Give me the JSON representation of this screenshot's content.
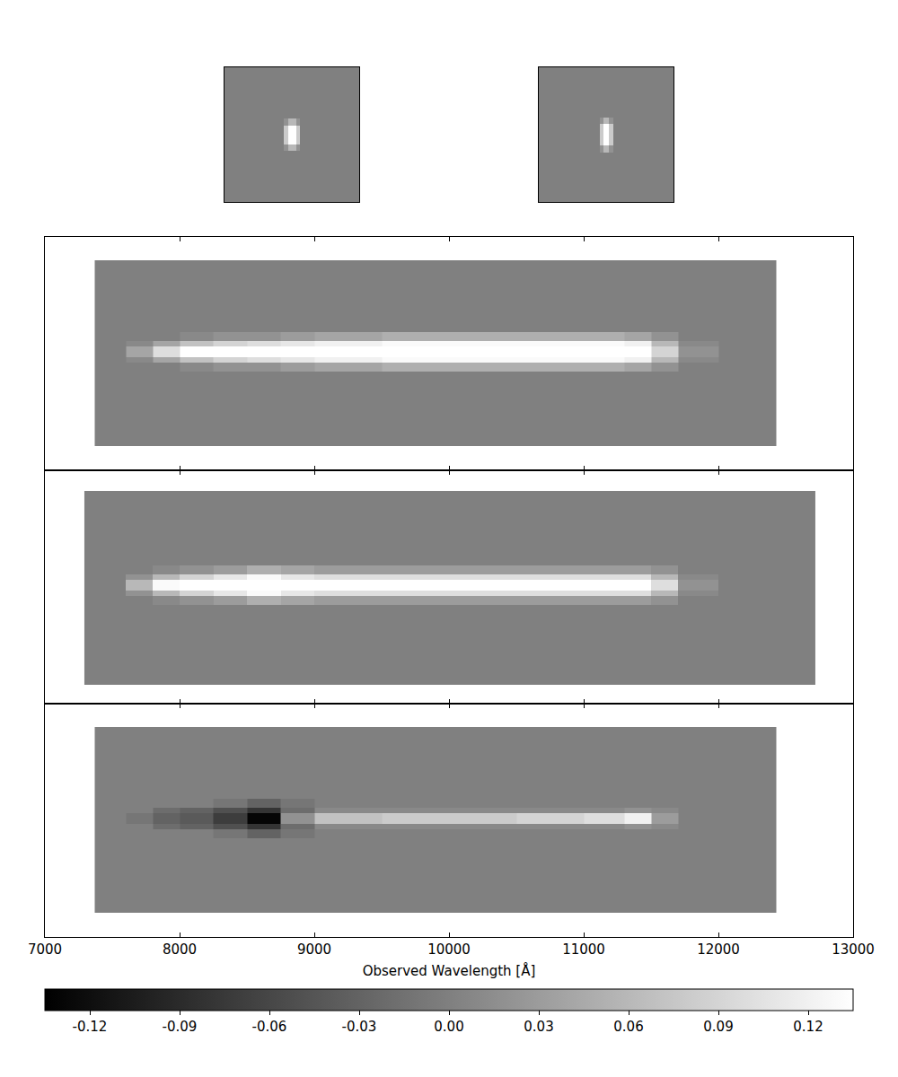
{
  "chart_data": [
    {
      "type": "heatmap",
      "x": [
        0,
        44,
        47,
        53,
        56,
        100
      ],
      "y": [
        0,
        38,
        43,
        57,
        62,
        100
      ],
      "cells": [
        [
          0,
          0,
          0,
          0,
          0
        ],
        [
          0,
          0.02,
          0.06,
          0.02,
          0
        ],
        [
          0,
          0.08,
          0.14,
          0.08,
          0
        ],
        [
          0,
          0.02,
          0.06,
          0.02,
          0
        ],
        [
          0,
          0,
          0,
          0,
          0
        ]
      ],
      "xlim": [
        0,
        100
      ],
      "ylim": [
        0,
        100
      ],
      "tick_labels": false,
      "grid": false
    },
    {
      "type": "heatmap",
      "x": [
        0,
        45,
        48,
        52,
        55,
        100
      ],
      "y": [
        0,
        37,
        42,
        58,
        63,
        100
      ],
      "cells": [
        [
          0,
          0,
          0,
          0,
          0
        ],
        [
          0,
          0.02,
          0.06,
          0.02,
          0
        ],
        [
          0,
          0.08,
          0.14,
          0.08,
          0
        ],
        [
          0,
          0.02,
          0.06,
          0.02,
          0
        ],
        [
          0,
          0,
          0,
          0,
          0
        ]
      ],
      "xlim": [
        0,
        100
      ],
      "ylim": [
        0,
        100
      ],
      "tick_labels": false,
      "grid": false
    },
    {
      "type": "heatmap",
      "x": [
        7370,
        7600,
        7800,
        8000,
        8250,
        8500,
        8750,
        9000,
        9500,
        10000,
        10500,
        11000,
        11300,
        11500,
        11700,
        12000,
        12430
      ],
      "y": [
        2.7,
        11.0,
        12.0,
        12.6,
        13.8,
        14.4,
        15.4,
        23.4
      ],
      "cells": [
        [
          0,
          0,
          0,
          0,
          0,
          0,
          0,
          0,
          0,
          0,
          0,
          0,
          0,
          0,
          0,
          0
        ],
        [
          0,
          0,
          0,
          0.01,
          0.02,
          0.02,
          0.03,
          0.04,
          0.05,
          0.05,
          0.05,
          0.05,
          0.04,
          0.02,
          0,
          0
        ],
        [
          0,
          0.01,
          0.04,
          0.07,
          0.09,
          0.1,
          0.11,
          0.12,
          0.13,
          0.13,
          0.13,
          0.13,
          0.12,
          0.06,
          0.01,
          0
        ],
        [
          0,
          0.04,
          0.1,
          0.14,
          0.14,
          0.14,
          0.14,
          0.14,
          0.14,
          0.14,
          0.14,
          0.14,
          0.14,
          0.09,
          0.02,
          0
        ],
        [
          0,
          0.01,
          0.04,
          0.07,
          0.09,
          0.1,
          0.11,
          0.12,
          0.13,
          0.13,
          0.13,
          0.13,
          0.12,
          0.06,
          0.01,
          0
        ],
        [
          0,
          0,
          0,
          0.01,
          0.02,
          0.02,
          0.03,
          0.04,
          0.05,
          0.05,
          0.05,
          0.05,
          0.04,
          0.02,
          0,
          0
        ],
        [
          0,
          0,
          0,
          0,
          0,
          0,
          0,
          0,
          0,
          0,
          0,
          0,
          0,
          0,
          0,
          0
        ]
      ],
      "xlim": [
        7000,
        13000
      ],
      "ylim": [
        0,
        26
      ],
      "xticks": [
        7000,
        8000,
        9000,
        10000,
        11000,
        12000,
        13000
      ],
      "tick_labels": false,
      "grid": false
    },
    {
      "type": "heatmap",
      "x": [
        7293,
        7600,
        7800,
        8000,
        8250,
        8500,
        8750,
        9000,
        9500,
        10000,
        10500,
        11000,
        11300,
        11500,
        11700,
        12000,
        12720
      ],
      "y": [
        2.1,
        11.0,
        12.0,
        12.6,
        13.8,
        14.4,
        15.4,
        23.7
      ],
      "cells": [
        [
          0,
          0,
          0,
          0,
          0,
          0,
          0,
          0,
          0,
          0,
          0,
          0,
          0,
          0,
          0,
          0
        ],
        [
          0,
          0,
          0.01,
          0.02,
          0.03,
          0.05,
          0.04,
          0.03,
          0.03,
          0.03,
          0.03,
          0.03,
          0.03,
          0.02,
          0,
          0
        ],
        [
          0,
          0.02,
          0.06,
          0.09,
          0.11,
          0.13,
          0.11,
          0.1,
          0.1,
          0.1,
          0.1,
          0.1,
          0.1,
          0.06,
          0.01,
          0
        ],
        [
          0,
          0.06,
          0.13,
          0.14,
          0.14,
          0.14,
          0.14,
          0.14,
          0.14,
          0.14,
          0.14,
          0.14,
          0.14,
          0.1,
          0.02,
          0
        ],
        [
          0,
          0.02,
          0.06,
          0.09,
          0.11,
          0.13,
          0.11,
          0.1,
          0.1,
          0.1,
          0.1,
          0.1,
          0.1,
          0.06,
          0.01,
          0
        ],
        [
          0,
          0,
          0.01,
          0.02,
          0.03,
          0.05,
          0.04,
          0.03,
          0.03,
          0.03,
          0.03,
          0.03,
          0.03,
          0.02,
          0,
          0
        ],
        [
          0,
          0,
          0,
          0,
          0,
          0,
          0,
          0,
          0,
          0,
          0,
          0,
          0,
          0,
          0,
          0
        ]
      ],
      "xlim": [
        7000,
        13000
      ],
      "ylim": [
        0,
        26
      ],
      "xticks": [
        7000,
        8000,
        9000,
        10000,
        11000,
        12000,
        13000
      ],
      "tick_labels": false,
      "grid": false
    },
    {
      "type": "heatmap",
      "x": [
        7370,
        7600,
        7800,
        8000,
        8250,
        8500,
        8750,
        9000,
        9500,
        10000,
        10500,
        11000,
        11300,
        11500,
        11700,
        12000,
        12430
      ],
      "y": [
        2.7,
        11.0,
        12.0,
        12.6,
        13.8,
        14.4,
        15.4,
        23.4
      ],
      "cells": [
        [
          0,
          0,
          0,
          0,
          0,
          0,
          0,
          0,
          0,
          0,
          0,
          0,
          0,
          0,
          0,
          0
        ],
        [
          0,
          0,
          0,
          0,
          -0.01,
          -0.03,
          -0.01,
          0,
          0,
          0,
          0,
          0,
          0,
          0,
          0,
          0
        ],
        [
          0,
          0,
          -0.02,
          -0.03,
          -0.05,
          -0.08,
          -0.02,
          0.01,
          0.01,
          0.01,
          0.01,
          0.01,
          0.02,
          0.01,
          0,
          0
        ],
        [
          0,
          -0.01,
          -0.03,
          -0.04,
          -0.07,
          -0.13,
          0.02,
          0.07,
          0.08,
          0.08,
          0.09,
          0.1,
          0.12,
          0.03,
          0,
          0
        ],
        [
          0,
          0,
          -0.02,
          -0.03,
          -0.05,
          -0.08,
          -0.02,
          0.01,
          0.01,
          0.01,
          0.01,
          0.01,
          0.02,
          0.01,
          0,
          0
        ],
        [
          0,
          0,
          0,
          0,
          -0.01,
          -0.03,
          -0.01,
          0,
          0,
          0,
          0,
          0,
          0,
          0,
          0,
          0
        ],
        [
          0,
          0,
          0,
          0,
          0,
          0,
          0,
          0,
          0,
          0,
          0,
          0,
          0,
          0,
          0,
          0
        ]
      ],
      "xlim": [
        7000,
        13000
      ],
      "ylim": [
        0,
        26
      ],
      "xticks": [
        7000,
        8000,
        9000,
        10000,
        11000,
        12000,
        13000
      ],
      "xlabel": "Observed Wavelength [Å]",
      "tick_labels": "x",
      "grid": false,
      "colorbar": {
        "range": [
          -0.135,
          0.135
        ],
        "ticks": [
          -0.12,
          -0.09,
          -0.06,
          -0.03,
          {
            "value": 0,
            "label": "0.00"
          },
          0.03,
          0.06,
          0.09,
          0.12
        ]
      }
    }
  ]
}
